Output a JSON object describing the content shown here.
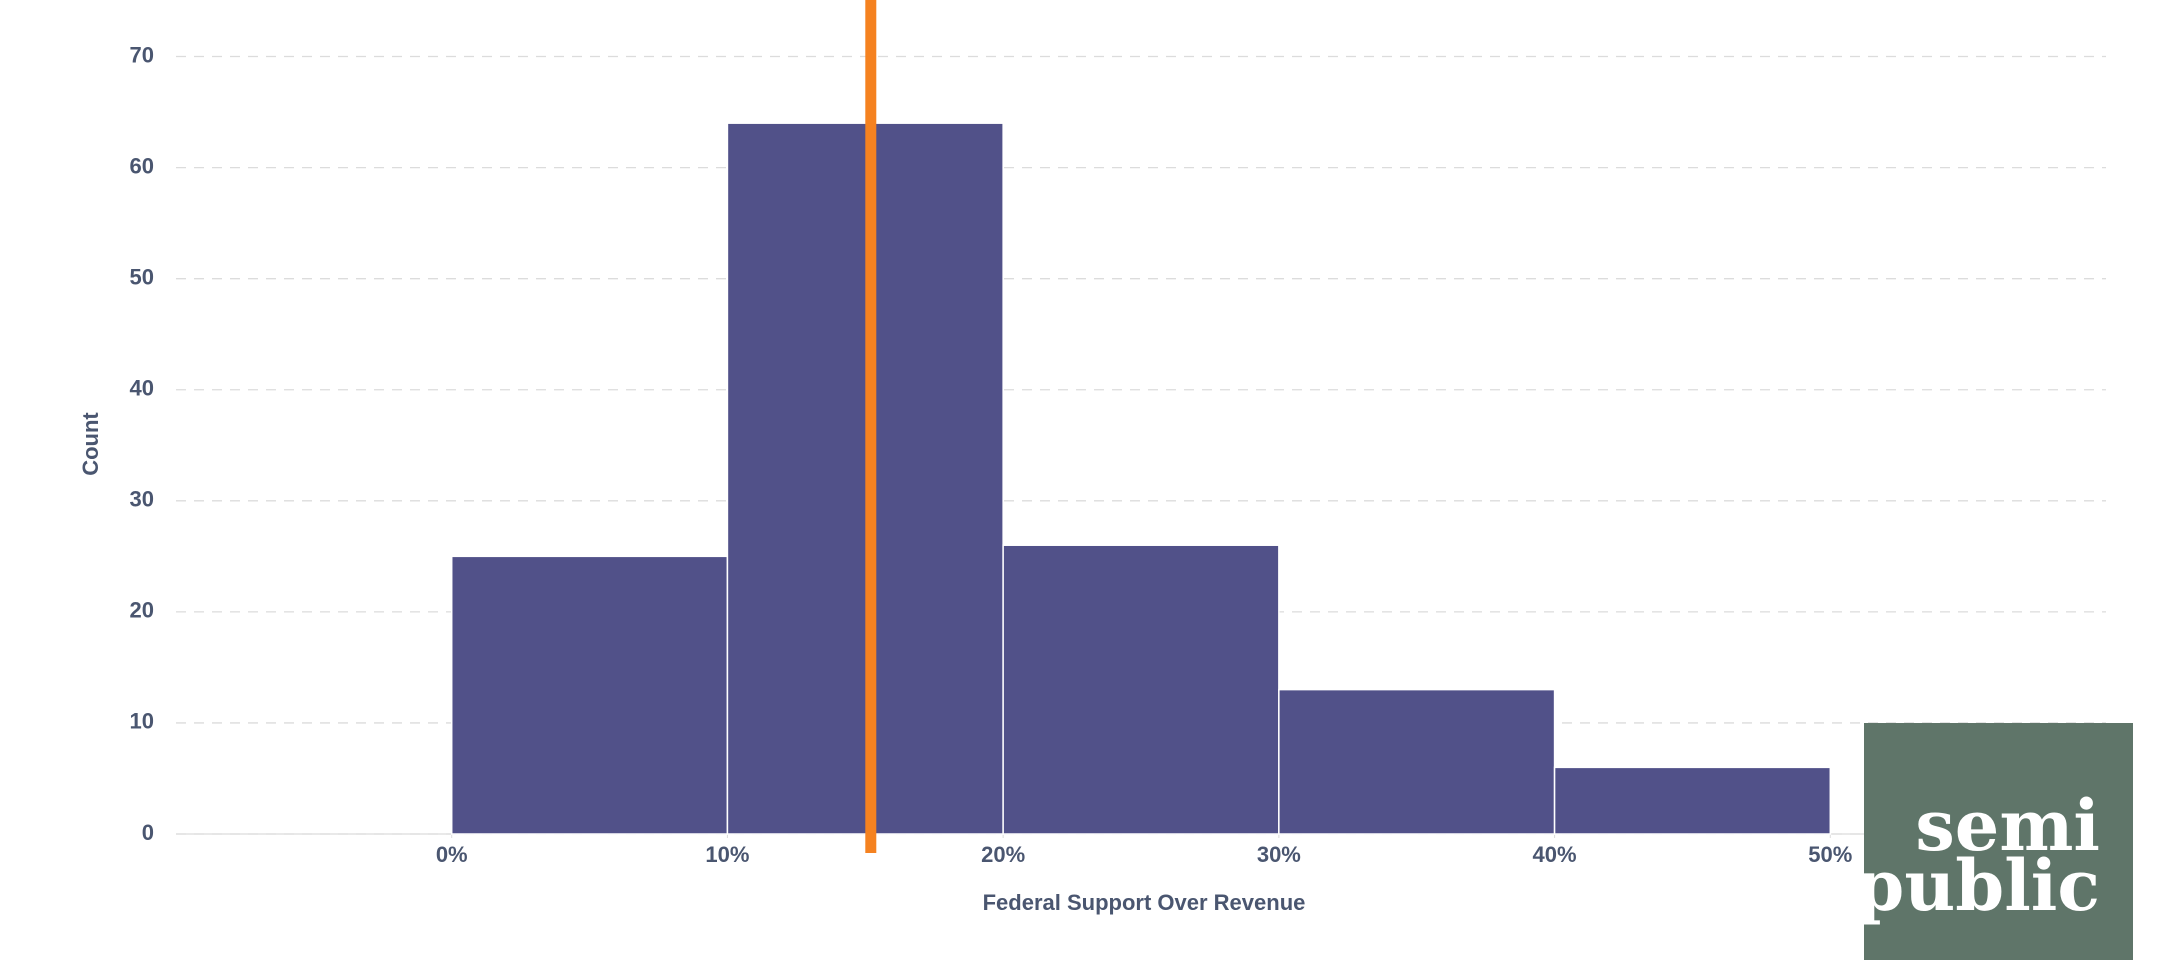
{
  "chart_data": {
    "type": "histogram",
    "x_label": "Federal Support Over Revenue",
    "y_label": "Count",
    "bins": [
      0,
      10,
      20,
      30,
      40,
      50
    ],
    "counts": [
      25,
      64,
      26,
      13,
      6
    ],
    "color": "#515189",
    "xlim": [
      -10,
      60
    ],
    "ylim": [
      0,
      75
    ],
    "xticks": [
      {
        "value": 0,
        "label": "0%"
      },
      {
        "value": 10,
        "label": "10%"
      },
      {
        "value": 20,
        "label": "20%"
      },
      {
        "value": 30,
        "label": "30%"
      },
      {
        "value": 40,
        "label": "40%"
      },
      {
        "value": 50,
        "label": "50%"
      }
    ],
    "yticks": [
      0,
      10,
      20,
      30,
      40,
      50,
      60,
      70
    ],
    "grid": true,
    "reference_line": {
      "value": 15.2,
      "color": "#f58220"
    }
  },
  "logo": {
    "lines": [
      "semi",
      "public"
    ]
  }
}
